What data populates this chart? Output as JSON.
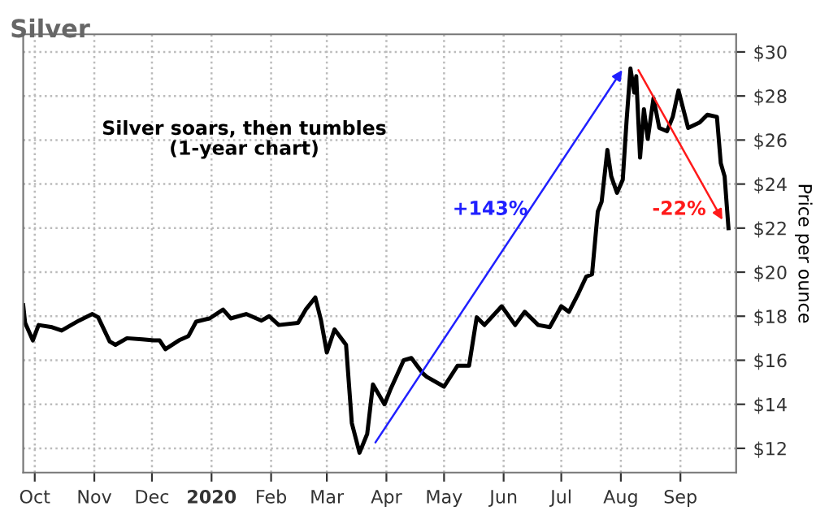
{
  "chart_data": {
    "type": "line",
    "title": "Silver",
    "ylabel": "Price per ounce",
    "annotations": [
      "Silver soars, then tumbles\n(1-year chart)",
      "+143%",
      "-22%"
    ],
    "x": [
      "2019-09-25",
      "2019-09-26",
      "2019-09-30",
      "2019-10-03",
      "2019-10-10",
      "2019-10-15",
      "2019-10-24",
      "2019-10-31",
      "2019-11-03",
      "2019-11-09",
      "2019-11-12",
      "2019-11-18",
      "2019-11-26",
      "2019-12-02",
      "2019-12-05",
      "2019-12-08",
      "2019-12-15",
      "2019-12-20",
      "2019-12-24",
      "2019-12-31",
      "2020-01-07",
      "2020-01-11",
      "2020-01-19",
      "2020-01-27",
      "2020-01-31",
      "2020-02-05",
      "2020-02-15",
      "2020-02-19",
      "2020-02-24",
      "2020-02-27",
      "2020-03-01",
      "2020-03-05",
      "2020-03-11",
      "2020-03-14",
      "2020-03-18",
      "2020-03-22",
      "2020-03-25",
      "2020-03-31",
      "2020-04-03",
      "2020-04-10",
      "2020-04-14",
      "2020-04-20",
      "2020-04-22",
      "2020-05-01",
      "2020-05-08",
      "2020-05-14",
      "2020-05-18",
      "2020-05-22",
      "2020-05-31",
      "2020-06-07",
      "2020-06-12",
      "2020-06-19",
      "2020-06-25",
      "2020-07-01",
      "2020-07-05",
      "2020-07-10",
      "2020-07-14",
      "2020-07-17",
      "2020-07-20",
      "2020-07-22",
      "2020-07-25",
      "2020-07-27",
      "2020-07-30",
      "2020-08-02",
      "2020-08-04",
      "2020-08-06",
      "2020-08-08",
      "2020-08-09",
      "2020-08-11",
      "2020-08-13",
      "2020-08-15",
      "2020-08-18",
      "2020-08-21",
      "2020-08-25",
      "2020-08-28",
      "2020-08-31",
      "2020-09-05",
      "2020-09-11",
      "2020-09-15",
      "2020-09-20",
      "2020-09-22",
      "2020-09-24",
      "2020-09-26"
    ],
    "series": [
      {
        "color": "#000000",
        "values": [
          18.5,
          17.7,
          16.9,
          17.6,
          17.5,
          17.35,
          17.8,
          18.1,
          17.95,
          16.85,
          16.7,
          17.0,
          16.95,
          16.9,
          16.9,
          16.5,
          16.9,
          17.1,
          17.75,
          17.9,
          18.3,
          17.9,
          18.1,
          17.8,
          18.0,
          17.6,
          17.7,
          18.3,
          18.85,
          17.8,
          16.35,
          17.4,
          16.7,
          13.15,
          11.8,
          12.65,
          14.9,
          14.0,
          14.65,
          16.0,
          16.1,
          15.4,
          15.25,
          14.8,
          15.75,
          15.75,
          17.95,
          17.6,
          18.45,
          17.6,
          18.2,
          17.6,
          17.5,
          18.45,
          18.2,
          19.05,
          19.8,
          19.9,
          22.75,
          23.2,
          25.55,
          24.35,
          23.6,
          24.2,
          26.9,
          29.25,
          28.15,
          28.9,
          25.2,
          27.4,
          26.05,
          27.9,
          26.55,
          26.4,
          27.05,
          28.25,
          26.55,
          26.8,
          27.15,
          27.05,
          24.95,
          24.35,
          22.0
        ]
      }
    ],
    "xlim": [
      "2019-09-25",
      "2020-09-30"
    ],
    "xticks": [
      {
        "value": "2019-10-01",
        "label": "Oct"
      },
      {
        "value": "2019-11-01",
        "label": "Nov"
      },
      {
        "value": "2019-12-01",
        "label": "Dec"
      },
      {
        "value": "2020-01-01",
        "label": "2020"
      },
      {
        "value": "2020-02-01",
        "label": "Feb"
      },
      {
        "value": "2020-03-01",
        "label": "Mar"
      },
      {
        "value": "2020-04-01",
        "label": "Apr"
      },
      {
        "value": "2020-05-01",
        "label": "May"
      },
      {
        "value": "2020-06-01",
        "label": "Jun"
      },
      {
        "value": "2020-07-01",
        "label": "Jul"
      },
      {
        "value": "2020-08-01",
        "label": "Aug"
      },
      {
        "value": "2020-09-01",
        "label": "Sep"
      }
    ],
    "ylim": [
      10.9,
      30.8
    ],
    "yticks": [
      {
        "value": 12,
        "label": "$12"
      },
      {
        "value": 14,
        "label": "$14"
      },
      {
        "value": 16,
        "label": "$16"
      },
      {
        "value": 18,
        "label": "$18"
      },
      {
        "value": 20,
        "label": "$20"
      },
      {
        "value": 22,
        "label": "$22"
      },
      {
        "value": 24,
        "label": "$24"
      },
      {
        "value": 26,
        "label": "$26"
      },
      {
        "value": 28,
        "label": "$28"
      },
      {
        "value": 30,
        "label": "$30"
      }
    ],
    "grid": true,
    "marker": "none",
    "line_style": "solid"
  }
}
